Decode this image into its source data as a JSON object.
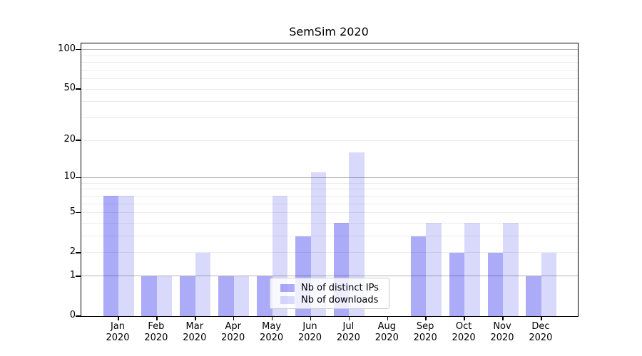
{
  "title": "SemSim 2020",
  "chart_data": {
    "type": "bar",
    "title": "SemSim 2020",
    "categories": [
      "Jan",
      "Feb",
      "Mar",
      "Apr",
      "May",
      "Jun",
      "Jul",
      "Aug",
      "Sep",
      "Oct",
      "Nov",
      "Dec"
    ],
    "category_year": "2020",
    "series": [
      {
        "name": "Nb of distinct IPs",
        "values": [
          7,
          1,
          1,
          1,
          1,
          3,
          4,
          0,
          3,
          2,
          2,
          1
        ],
        "base_color": "#0a0aeb",
        "opacity": 0.34,
        "composite_color": "#a9a9fb"
      },
      {
        "name": "Nb of downloads",
        "values": [
          7,
          1,
          2,
          1,
          7,
          11,
          16,
          0,
          4,
          4,
          4,
          2
        ],
        "base_color": "#0a0aeb",
        "opacity": 0.155,
        "composite_color": "#d9d9fc"
      }
    ],
    "xlabel": "",
    "ylabel": "",
    "y_axis": {
      "scale": "log1p",
      "tick_values": [
        0,
        1,
        2,
        5,
        10,
        20,
        50,
        100
      ],
      "tick_labels": [
        "0",
        "1",
        "2",
        "5",
        "10",
        "20",
        "50",
        "100"
      ],
      "major_gridlines": [
        1,
        10,
        100
      ],
      "minor_gridlines": [
        2,
        3,
        4,
        5,
        6,
        7,
        8,
        9,
        20,
        30,
        40,
        50,
        60,
        70,
        80,
        90
      ],
      "top_value": 110
    },
    "legend": {
      "position": "lower center",
      "labels": [
        "Nb of distinct IPs",
        "Nb of downloads"
      ]
    },
    "grid": true
  },
  "colors": {
    "background": "#ffffff",
    "spine": "#000000",
    "major_grid": "#b3b3b3",
    "minor_grid": "#ebebeb",
    "text": "#000000"
  }
}
